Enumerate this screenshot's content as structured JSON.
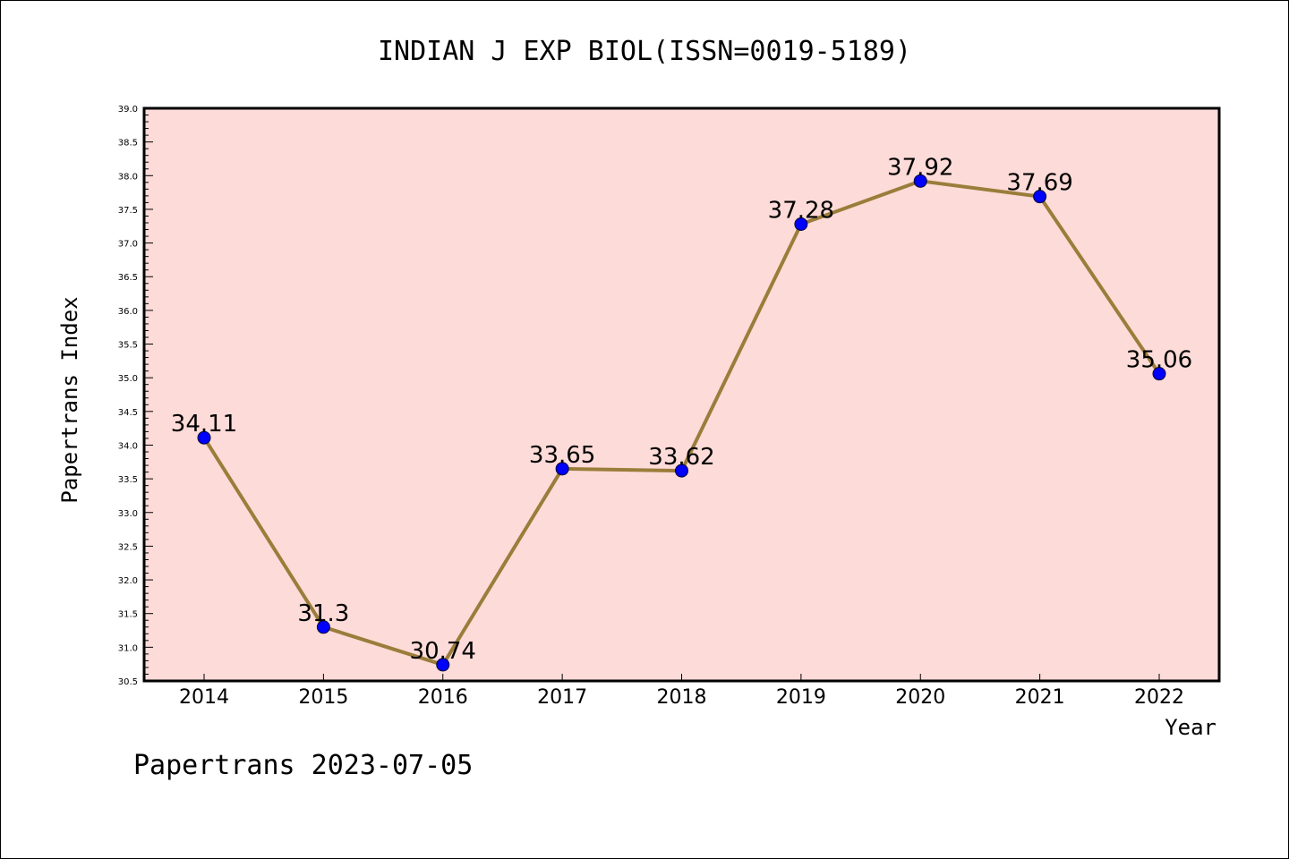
{
  "chart_data": {
    "type": "line",
    "title": "INDIAN J EXP BIOL(ISSN=0019-5189)",
    "xlabel": "Year",
    "ylabel": "Papertrans Index",
    "x": [
      "2014",
      "2015",
      "2016",
      "2017",
      "2018",
      "2019",
      "2020",
      "2021",
      "2022"
    ],
    "series": [
      {
        "values": [
          34.11,
          31.3,
          30.74,
          33.65,
          33.62,
          37.28,
          37.92,
          37.69,
          35.06
        ],
        "data_labels": [
          "34.11",
          "31.3",
          "30.74",
          "33.65",
          "33.62",
          "37.28",
          "37.92",
          "37.69",
          "35.06"
        ]
      }
    ],
    "ylim": [
      30.5,
      39.0
    ],
    "y_ticks": [
      "30.5",
      "31.0",
      "31.5",
      "32.0",
      "32.5",
      "33.0",
      "33.5",
      "34.0",
      "34.5",
      "35.0",
      "35.5",
      "36.0",
      "36.5",
      "37.0",
      "37.5",
      "38.0",
      "38.5",
      "39.0"
    ],
    "grid": false,
    "colors": {
      "plot_background": "#fddbd8",
      "line": "#9a7d3a",
      "marker": "#0000ff",
      "axis": "#000000"
    }
  },
  "footer": "Papertrans 2023-07-05"
}
